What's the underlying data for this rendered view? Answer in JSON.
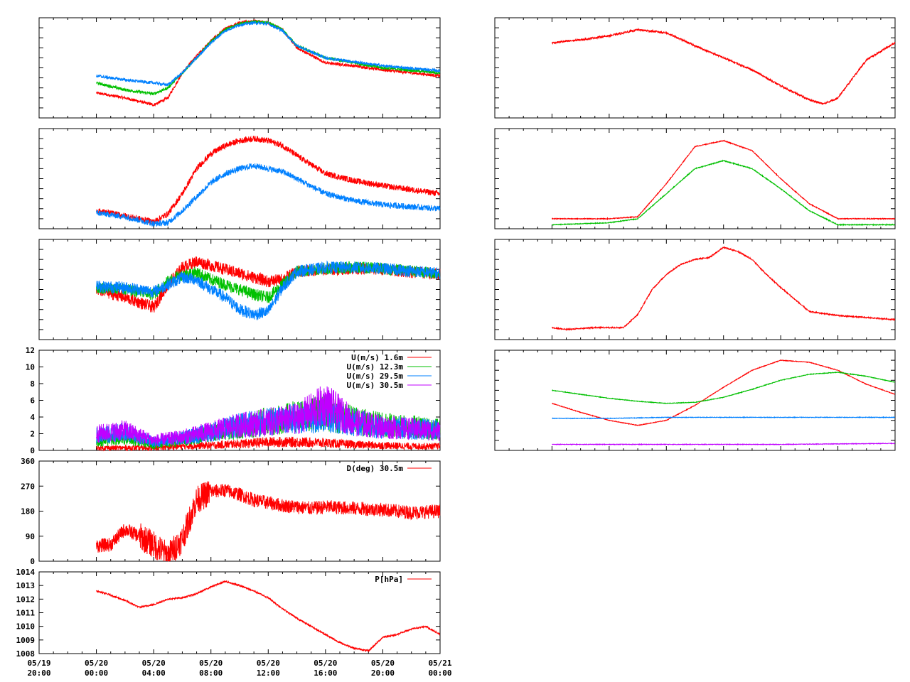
{
  "colors": {
    "red": "#ff0000",
    "green": "#00c000",
    "blue": "#0080ff",
    "purple": "#c000ff",
    "frame": "#000000"
  },
  "time_axis": {
    "labels": [
      [
        "05/19",
        "20:00"
      ],
      [
        "05/20",
        "00:00"
      ],
      [
        "05/20",
        "04:00"
      ],
      [
        "05/20",
        "08:00"
      ],
      [
        "05/20",
        "12:00"
      ],
      [
        "05/20",
        "16:00"
      ],
      [
        "05/20",
        "20:00"
      ],
      [
        "05/21",
        "00:00"
      ]
    ]
  },
  "chart_data": [
    {
      "id": "temp_profile",
      "type": "line",
      "column": "left",
      "row": 0,
      "xlim": [
        0,
        28
      ],
      "ylim": [
        0,
        1
      ],
      "series": [
        {
          "color": "red",
          "x": [
            4,
            6,
            8,
            9,
            10,
            11,
            12,
            13,
            14,
            15,
            16,
            17,
            18,
            20,
            22,
            24,
            28
          ],
          "y": [
            0.25,
            0.2,
            0.13,
            0.2,
            0.45,
            0.62,
            0.77,
            0.89,
            0.95,
            0.97,
            0.95,
            0.88,
            0.7,
            0.55,
            0.52,
            0.48,
            0.42
          ]
        },
        {
          "color": "green",
          "x": [
            4,
            6,
            8,
            9,
            10,
            11,
            12,
            13,
            14,
            15,
            16,
            17,
            18,
            20,
            22,
            24,
            28
          ],
          "y": [
            0.35,
            0.28,
            0.24,
            0.3,
            0.45,
            0.6,
            0.76,
            0.88,
            0.94,
            0.96,
            0.95,
            0.88,
            0.72,
            0.6,
            0.55,
            0.5,
            0.45
          ]
        },
        {
          "color": "blue",
          "x": [
            4,
            6,
            8,
            9,
            10,
            11,
            12,
            13,
            14,
            15,
            16,
            17,
            18,
            20,
            22,
            24,
            28
          ],
          "y": [
            0.42,
            0.38,
            0.35,
            0.33,
            0.45,
            0.6,
            0.75,
            0.87,
            0.93,
            0.95,
            0.94,
            0.87,
            0.72,
            0.6,
            0.56,
            0.52,
            0.47
          ]
        }
      ]
    },
    {
      "id": "humidity_profile",
      "type": "line",
      "column": "left",
      "row": 1,
      "xlim": [
        0,
        28
      ],
      "ylim": [
        0,
        1
      ],
      "series": [
        {
          "color": "red",
          "x": [
            4,
            6,
            8,
            9,
            10,
            11,
            12,
            13,
            14,
            15,
            16,
            17,
            18,
            20,
            22,
            24,
            28
          ],
          "y": [
            0.18,
            0.13,
            0.07,
            0.15,
            0.35,
            0.6,
            0.75,
            0.83,
            0.88,
            0.9,
            0.88,
            0.83,
            0.73,
            0.55,
            0.48,
            0.43,
            0.35
          ]
        },
        {
          "color": "blue",
          "x": [
            4,
            6,
            8,
            9,
            10,
            11,
            12,
            13,
            14,
            15,
            16,
            17,
            18,
            20,
            22,
            24,
            28
          ],
          "y": [
            0.16,
            0.12,
            0.05,
            0.06,
            0.18,
            0.32,
            0.46,
            0.55,
            0.6,
            0.63,
            0.6,
            0.57,
            0.5,
            0.35,
            0.28,
            0.24,
            0.2
          ]
        }
      ]
    },
    {
      "id": "temp_diff_profile",
      "type": "line",
      "column": "left",
      "row": 2,
      "xlim": [
        0,
        28
      ],
      "ylim": [
        0,
        1
      ],
      "series": [
        {
          "color": "red",
          "x": [
            4,
            6,
            8,
            9,
            10,
            11,
            12,
            13,
            14,
            15,
            16,
            17,
            18,
            20,
            22,
            24,
            28
          ],
          "y": [
            0.5,
            0.42,
            0.32,
            0.55,
            0.72,
            0.78,
            0.74,
            0.7,
            0.66,
            0.62,
            0.58,
            0.6,
            0.68,
            0.7,
            0.71,
            0.7,
            0.65
          ]
        },
        {
          "color": "green",
          "x": [
            4,
            6,
            8,
            9,
            10,
            11,
            12,
            13,
            14,
            15,
            16,
            17,
            18,
            20,
            22,
            24,
            28
          ],
          "y": [
            0.52,
            0.5,
            0.45,
            0.58,
            0.65,
            0.67,
            0.6,
            0.55,
            0.5,
            0.45,
            0.42,
            0.55,
            0.68,
            0.71,
            0.72,
            0.71,
            0.66
          ]
        },
        {
          "color": "blue",
          "x": [
            4,
            6,
            8,
            9,
            10,
            11,
            12,
            13,
            14,
            15,
            16,
            17,
            18,
            20,
            22,
            24,
            28
          ],
          "y": [
            0.53,
            0.52,
            0.48,
            0.55,
            0.62,
            0.6,
            0.5,
            0.42,
            0.3,
            0.25,
            0.28,
            0.52,
            0.68,
            0.72,
            0.72,
            0.71,
            0.66
          ]
        }
      ]
    },
    {
      "id": "wind_speed",
      "type": "line",
      "column": "left",
      "row": 3,
      "xlim": [
        0,
        28
      ],
      "ylim": [
        0,
        12
      ],
      "yticks": [
        0,
        2,
        4,
        6,
        8,
        10,
        12
      ],
      "legend": "top-right",
      "series": [
        {
          "name": "U(m/s)  1.6m",
          "color": "red",
          "x": [
            4,
            6,
            8,
            10,
            12,
            14,
            16,
            18,
            20,
            22,
            24,
            26,
            28
          ],
          "y": [
            0.3,
            0.3,
            0.3,
            0.5,
            0.6,
            0.8,
            1.0,
            1.0,
            0.9,
            0.7,
            0.6,
            0.5,
            0.5
          ]
        },
        {
          "name": "U(m/s) 12.3m",
          "color": "green",
          "x": [
            4,
            6,
            8,
            10,
            12,
            14,
            16,
            18,
            20,
            22,
            24,
            26,
            28
          ],
          "y": [
            1.0,
            1.5,
            0.6,
            1.2,
            2.0,
            2.8,
            3.5,
            4.0,
            4.5,
            3.5,
            3.0,
            2.8,
            2.5
          ]
        },
        {
          "name": "U(m/s) 29.5m",
          "color": "blue",
          "x": [
            4,
            6,
            8,
            10,
            12,
            14,
            16,
            18,
            20,
            22,
            24,
            26,
            28
          ],
          "y": [
            1.8,
            2.2,
            1.0,
            1.5,
            2.2,
            3.0,
            3.4,
            3.8,
            4.2,
            3.4,
            2.8,
            2.6,
            2.4
          ]
        },
        {
          "name": "U(m/s) 30.5m",
          "color": "purple",
          "x": [
            4,
            6,
            8,
            10,
            12,
            14,
            16,
            18,
            20,
            22,
            24,
            26,
            28
          ],
          "y": [
            2.0,
            2.4,
            1.2,
            1.6,
            2.3,
            3.0,
            3.4,
            3.8,
            5.5,
            3.4,
            2.8,
            2.6,
            2.3
          ]
        }
      ]
    },
    {
      "id": "wind_direction",
      "type": "line",
      "column": "left",
      "row": 4,
      "xlim": [
        0,
        28
      ],
      "ylim": [
        0,
        360
      ],
      "yticks": [
        0,
        90,
        180,
        270,
        360
      ],
      "legend": "top-right",
      "series": [
        {
          "name": "D(deg)  30.5m",
          "color": "red",
          "x": [
            4,
            5,
            6,
            7,
            8,
            9,
            10,
            11,
            12,
            13,
            14,
            15,
            16,
            17,
            18,
            19,
            20,
            22,
            24,
            26,
            28
          ],
          "y": [
            55,
            60,
            115,
            90,
            60,
            20,
            80,
            220,
            250,
            255,
            240,
            220,
            210,
            200,
            195,
            190,
            195,
            190,
            185,
            175,
            180
          ]
        }
      ]
    },
    {
      "id": "pressure",
      "type": "line",
      "column": "left",
      "row": 5,
      "xlim": [
        0,
        28
      ],
      "ylim": [
        1008,
        1014
      ],
      "yticks": [
        1008,
        1009,
        1010,
        1011,
        1012,
        1013,
        1014
      ],
      "legend": "top-right",
      "series": [
        {
          "name": "P[hPa]",
          "color": "red",
          "x": [
            4,
            5,
            6,
            7,
            8,
            9,
            10,
            11,
            12,
            13,
            14,
            15,
            16,
            17,
            18,
            19,
            20,
            21,
            22,
            23,
            24,
            25,
            26,
            27,
            28
          ],
          "y": [
            1012.6,
            1012.3,
            1011.9,
            1011.4,
            1011.6,
            1012.0,
            1012.1,
            1012.4,
            1012.9,
            1013.3,
            1013.0,
            1012.6,
            1012.1,
            1011.3,
            1010.6,
            1010.0,
            1009.4,
            1008.8,
            1008.4,
            1008.2,
            1009.2,
            1009.4,
            1009.8,
            1010.0,
            1009.4
          ]
        }
      ]
    },
    {
      "id": "right_panel_1",
      "type": "line",
      "column": "right",
      "row": 0,
      "xlim": [
        0,
        28
      ],
      "ylim": [
        0,
        1
      ],
      "series": [
        {
          "color": "red",
          "x": [
            4,
            6,
            8,
            10,
            12,
            14,
            16,
            18,
            20,
            22,
            23,
            24,
            26,
            28
          ],
          "y": [
            0.75,
            0.78,
            0.82,
            0.88,
            0.85,
            0.72,
            0.6,
            0.48,
            0.32,
            0.18,
            0.14,
            0.2,
            0.58,
            0.75
          ]
        }
      ]
    },
    {
      "id": "right_panel_2",
      "type": "line",
      "column": "right",
      "row": 1,
      "xlim": [
        0,
        28
      ],
      "ylim": [
        0,
        1
      ],
      "series": [
        {
          "color": "red",
          "x": [
            4,
            8,
            10,
            12,
            14,
            16,
            18,
            20,
            22,
            24,
            28
          ],
          "y": [
            0.1,
            0.1,
            0.12,
            0.45,
            0.82,
            0.88,
            0.78,
            0.5,
            0.25,
            0.1,
            0.1
          ]
        },
        {
          "color": "green",
          "x": [
            4,
            8,
            10,
            12,
            14,
            16,
            18,
            20,
            22,
            24,
            28
          ],
          "y": [
            0.04,
            0.06,
            0.1,
            0.35,
            0.6,
            0.68,
            0.6,
            0.4,
            0.18,
            0.04,
            0.04
          ]
        }
      ]
    },
    {
      "id": "right_panel_3",
      "type": "line",
      "column": "right",
      "row": 2,
      "xlim": [
        0,
        28
      ],
      "ylim": [
        0,
        1
      ],
      "series": [
        {
          "color": "red",
          "x": [
            4,
            5,
            7,
            9,
            10,
            11,
            12,
            13,
            14,
            15,
            16,
            17,
            18,
            19,
            20,
            21,
            22,
            24,
            26,
            28
          ],
          "y": [
            0.12,
            0.1,
            0.12,
            0.12,
            0.25,
            0.5,
            0.65,
            0.75,
            0.8,
            0.82,
            0.92,
            0.88,
            0.8,
            0.65,
            0.52,
            0.4,
            0.28,
            0.24,
            0.22,
            0.2
          ]
        }
      ]
    },
    {
      "id": "right_panel_4",
      "type": "line",
      "column": "right",
      "row": 3,
      "xlim": [
        0,
        28
      ],
      "ylim": [
        0,
        1
      ],
      "series": [
        {
          "color": "red",
          "x": [
            4,
            6,
            8,
            10,
            12,
            14,
            16,
            18,
            20,
            22,
            24,
            26,
            28
          ],
          "y": [
            0.47,
            0.38,
            0.3,
            0.25,
            0.3,
            0.45,
            0.63,
            0.8,
            0.9,
            0.88,
            0.8,
            0.66,
            0.56
          ]
        },
        {
          "color": "green",
          "x": [
            4,
            6,
            8,
            10,
            12,
            14,
            16,
            18,
            20,
            22,
            24,
            26,
            28
          ],
          "y": [
            0.6,
            0.56,
            0.52,
            0.49,
            0.47,
            0.48,
            0.53,
            0.61,
            0.7,
            0.76,
            0.78,
            0.74,
            0.68
          ]
        },
        {
          "color": "blue",
          "x": [
            4,
            8,
            12,
            16,
            20,
            24,
            28
          ],
          "y": [
            0.32,
            0.32,
            0.33,
            0.33,
            0.33,
            0.33,
            0.33
          ]
        },
        {
          "color": "purple",
          "x": [
            4,
            8,
            12,
            16,
            20,
            24,
            28
          ],
          "y": [
            0.06,
            0.06,
            0.06,
            0.06,
            0.06,
            0.065,
            0.07
          ]
        }
      ]
    }
  ]
}
